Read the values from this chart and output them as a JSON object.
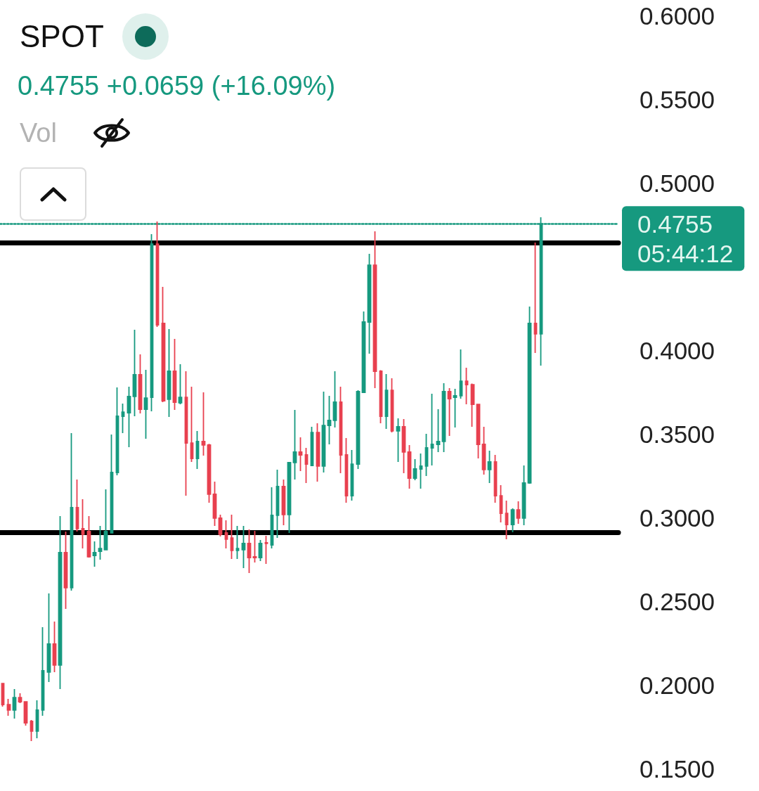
{
  "chart_data": {
    "type": "candlestick",
    "title": "SPOT",
    "subtitle": "0.4755 +0.0659 (+16.09%)",
    "annotations": [
      "Vol",
      "05:44:12"
    ],
    "categories": [
      null,
      null,
      null,
      null,
      null,
      null,
      null,
      null,
      null,
      null,
      null,
      null,
      null,
      null,
      null,
      null,
      null,
      null,
      null,
      null,
      null,
      null,
      null,
      null,
      null,
      null,
      null,
      null,
      null,
      null,
      null,
      null,
      null,
      null,
      null,
      null,
      null,
      null,
      null,
      null,
      null,
      null,
      null,
      null,
      null,
      null,
      null,
      null,
      null,
      null,
      null,
      null,
      null,
      null,
      null,
      null,
      null,
      null,
      null,
      null,
      null,
      null,
      null,
      null,
      null,
      null,
      null,
      null,
      null,
      null,
      null,
      null,
      null,
      null,
      null,
      null,
      null,
      null,
      null,
      null,
      null,
      null,
      null,
      null,
      null,
      null,
      null,
      null,
      null,
      null,
      null,
      null,
      null,
      null,
      null,
      null,
      null,
      null,
      null,
      null,
      null,
      null,
      null,
      null,
      null,
      null,
      null,
      null
    ],
    "ohlc": [
      [
        0.2008,
        0.201,
        0.187,
        0.1882
      ],
      [
        0.1882,
        0.1916,
        0.1815,
        0.1849
      ],
      [
        0.1849,
        0.1975,
        0.1798,
        0.1924
      ],
      [
        0.1924,
        0.195,
        0.1891,
        0.1899
      ],
      [
        0.1899,
        0.19,
        0.1756,
        0.1773
      ],
      [
        0.1782,
        0.179,
        0.1664,
        0.1723
      ],
      [
        0.1723,
        0.1908,
        0.1681,
        0.1849
      ],
      [
        0.1849,
        0.2345,
        0.1815,
        0.2084
      ],
      [
        0.2076,
        0.2546,
        0.2017,
        0.2244
      ],
      [
        0.2244,
        0.2378,
        0.2076,
        0.2118
      ],
      [
        0.2118,
        0.3008,
        0.1975,
        0.279
      ],
      [
        0.279,
        0.2916,
        0.2454,
        0.258
      ],
      [
        0.258,
        0.3504,
        0.2563,
        0.3059
      ],
      [
        0.3059,
        0.3227,
        0.2916,
        0.2933
      ],
      [
        0.2933,
        0.3109,
        0.2815,
        0.29
      ],
      [
        0.2916,
        0.3008,
        0.276,
        0.2765
      ],
      [
        0.2773,
        0.2857,
        0.2706,
        0.279
      ],
      [
        0.2798,
        0.295,
        0.2748,
        0.2815
      ],
      [
        0.2807,
        0.3168,
        0.2807,
        0.2916
      ],
      [
        0.2908,
        0.3496,
        0.2908,
        0.3269
      ],
      [
        0.3269,
        0.3777,
        0.3252,
        0.3605
      ],
      [
        0.3605,
        0.3681,
        0.3504,
        0.363
      ],
      [
        0.3626,
        0.3782,
        0.342,
        0.3723
      ],
      [
        0.3723,
        0.4122,
        0.3605,
        0.3853
      ],
      [
        0.3853,
        0.3975,
        0.3622,
        0.3647
      ],
      [
        0.3647,
        0.3882,
        0.3471,
        0.3714
      ],
      [
        0.3718,
        0.4693,
        0.3634,
        0.4634
      ],
      [
        0.4634,
        0.4769,
        0.4139,
        0.4151
      ],
      [
        0.416,
        0.4378,
        0.3689,
        0.3697
      ],
      [
        0.3706,
        0.4126,
        0.3601,
        0.3874
      ],
      [
        0.3874,
        0.4067,
        0.3643,
        0.3689
      ],
      [
        0.3685,
        0.3916,
        0.3676,
        0.3718
      ],
      [
        0.3718,
        0.3874,
        0.313,
        0.3445
      ],
      [
        0.3445,
        0.3782,
        0.3332,
        0.3353
      ],
      [
        0.3353,
        0.3517,
        0.329,
        0.3454
      ],
      [
        0.3454,
        0.3748,
        0.337,
        0.3433
      ],
      [
        0.3433,
        0.344,
        0.3088,
        0.3139
      ],
      [
        0.3139,
        0.3214,
        0.295,
        0.2996
      ],
      [
        0.2996,
        0.3017,
        0.2887,
        0.29
      ],
      [
        0.2908,
        0.2983,
        0.2815,
        0.287
      ],
      [
        0.2878,
        0.3017,
        0.2752,
        0.2803
      ],
      [
        0.2803,
        0.295,
        0.2752,
        0.2815
      ],
      [
        0.2807,
        0.295,
        0.2697,
        0.2845
      ],
      [
        0.2845,
        0.2929,
        0.2668,
        0.276
      ],
      [
        0.2765,
        0.292,
        0.2731,
        0.276
      ],
      [
        0.276,
        0.2866,
        0.2739,
        0.2845
      ],
      [
        0.2849,
        0.2891,
        0.2723,
        0.2845
      ],
      [
        0.2836,
        0.3181,
        0.2815,
        0.3013
      ],
      [
        0.3013,
        0.3286,
        0.2878,
        0.3185
      ],
      [
        0.3185,
        0.3227,
        0.2954,
        0.3017
      ],
      [
        0.3017,
        0.3332,
        0.2908,
        0.3328
      ],
      [
        0.3328,
        0.3643,
        0.3227,
        0.3391
      ],
      [
        0.3391,
        0.3479,
        0.3277,
        0.3374
      ],
      [
        0.3374,
        0.3416,
        0.3206,
        0.3319
      ],
      [
        0.3311,
        0.3542,
        0.3307,
        0.3508
      ],
      [
        0.3508,
        0.3563,
        0.3214,
        0.3307
      ],
      [
        0.3307,
        0.3752,
        0.3269,
        0.355
      ],
      [
        0.355,
        0.3727,
        0.3437,
        0.358
      ],
      [
        0.358,
        0.3874,
        0.3538,
        0.3689
      ],
      [
        0.3689,
        0.3782,
        0.3265,
        0.3374
      ],
      [
        0.3374,
        0.3475,
        0.3088,
        0.313
      ],
      [
        0.313,
        0.3403,
        0.3101,
        0.3319
      ],
      [
        0.3319,
        0.376,
        0.329,
        0.3752
      ],
      [
        0.3748,
        0.4231,
        0.3748,
        0.4168
      ],
      [
        0.4168,
        0.4576,
        0.3979,
        0.4508
      ],
      [
        0.4508,
        0.471,
        0.3773,
        0.3874
      ],
      [
        0.3874,
        0.388,
        0.3563,
        0.3605
      ],
      [
        0.3605,
        0.3857,
        0.3529,
        0.376
      ],
      [
        0.376,
        0.3832,
        0.3508,
        0.3517
      ],
      [
        0.3517,
        0.3592,
        0.3332,
        0.3542
      ],
      [
        0.3542,
        0.3588,
        0.3265,
        0.3391
      ],
      [
        0.3391,
        0.3433,
        0.3172,
        0.3235
      ],
      [
        0.3235,
        0.3349,
        0.3223,
        0.329
      ],
      [
        0.329,
        0.3382,
        0.3172,
        0.3307
      ],
      [
        0.3307,
        0.35,
        0.3248,
        0.3416
      ],
      [
        0.3416,
        0.374,
        0.3311,
        0.3437
      ],
      [
        0.3437,
        0.3647,
        0.3391,
        0.3454
      ],
      [
        0.3454,
        0.3803,
        0.3391,
        0.3752
      ],
      [
        0.3752,
        0.3773,
        0.3487,
        0.371
      ],
      [
        0.3718,
        0.3769,
        0.3538,
        0.3727
      ],
      [
        0.3727,
        0.4004,
        0.371,
        0.3815
      ],
      [
        0.3815,
        0.3895,
        0.3676,
        0.3794
      ],
      [
        0.3794,
        0.38,
        0.3542,
        0.3676
      ],
      [
        0.3676,
        0.368,
        0.3353,
        0.3437
      ],
      [
        0.3437,
        0.3542,
        0.3256,
        0.3286
      ],
      [
        0.3286,
        0.3399,
        0.3206,
        0.3332
      ],
      [
        0.3332,
        0.3374,
        0.3088,
        0.313
      ],
      [
        0.313,
        0.3193,
        0.2971,
        0.3025
      ],
      [
        0.3025,
        0.3101,
        0.287,
        0.2958
      ],
      [
        0.2958,
        0.3055,
        0.2912,
        0.3046
      ],
      [
        0.3046,
        0.3097,
        0.2962,
        0.2996
      ],
      [
        0.2996,
        0.3311,
        0.2954,
        0.3206
      ],
      [
        0.3206,
        0.4261,
        0.3202,
        0.416
      ],
      [
        0.416,
        0.4643,
        0.3983,
        0.4097
      ],
      [
        0.4097,
        0.4794,
        0.3908,
        0.4755
      ],
      null,
      null,
      null,
      null,
      null,
      null,
      null,
      null,
      null,
      null,
      null,
      null,
      null
    ],
    "colors": [
      "#e8404f",
      "#e8404f",
      "#16997f",
      "#e8404f",
      "#e8404f",
      "#e8404f",
      "#16997f",
      "#16997f",
      "#16997f",
      "#e8404f",
      "#16997f",
      "#e8404f",
      "#16997f",
      "#e8404f",
      "#e8404f",
      "#e8404f",
      "#16997f",
      "#16997f",
      "#16997f",
      "#16997f",
      "#16997f",
      "#16997f",
      "#16997f",
      "#16997f",
      "#e8404f",
      "#16997f",
      "#16997f",
      "#e8404f",
      "#e8404f",
      "#16997f",
      "#e8404f",
      "#16997f",
      "#e8404f",
      "#e8404f",
      "#16997f",
      "#e8404f",
      "#e8404f",
      "#e8404f",
      "#e8404f",
      "#e8404f",
      "#e8404f",
      "#16997f",
      "#16997f",
      "#e8404f",
      "#e8404f",
      "#16997f",
      "#e8404f",
      "#16997f",
      "#16997f",
      "#e8404f",
      "#16997f",
      "#16997f",
      "#e8404f",
      "#e8404f",
      "#16997f",
      "#e8404f",
      "#16997f",
      "#16997f",
      "#16997f",
      "#e8404f",
      "#e8404f",
      "#16997f",
      "#16997f",
      "#16997f",
      "#16997f",
      "#e8404f",
      "#e8404f",
      "#16997f",
      "#e8404f",
      "#16997f",
      "#e8404f",
      "#e8404f",
      "#16997f",
      "#16997f",
      "#16997f",
      "#16997f",
      "#16997f",
      "#16997f",
      "#e8404f",
      "#16997f",
      "#16997f",
      "#e8404f",
      "#e8404f",
      "#e8404f",
      "#e8404f",
      "#16997f",
      "#e8404f",
      "#e8404f",
      "#e8404f",
      "#16997f",
      "#e8404f",
      "#16997f",
      "#16997f",
      "#e8404f",
      "#16997f",
      null,
      null,
      null,
      null,
      null,
      null,
      null,
      null,
      null,
      null,
      null,
      null,
      null
    ],
    "ylim": [
      0.15,
      0.6
    ],
    "yticks": [
      {
        "value": 0.15,
        "label": "0.1500"
      },
      {
        "value": 0.2,
        "label": "0.2000"
      },
      {
        "value": 0.25,
        "label": "0.2500"
      },
      {
        "value": 0.3,
        "label": "0.3000"
      },
      {
        "value": 0.35,
        "label": "0.3500"
      },
      {
        "value": 0.4,
        "label": "0.4000"
      },
      {
        "value": 0.5,
        "label": "0.5000"
      },
      {
        "value": 0.55,
        "label": "0.5500"
      },
      {
        "value": 0.6,
        "label": "0.6000"
      }
    ],
    "tick_labels": "y",
    "grid": false,
    "ref_lines": [
      {
        "axis": "y",
        "value": 0.4643,
        "color": "#000000",
        "line_style": "solid"
      },
      {
        "axis": "y",
        "value": 0.2912,
        "color": "#000000",
        "line_style": "solid"
      },
      {
        "axis": "y",
        "value": 0.4755,
        "label": "0.4755",
        "color": "#16997f",
        "line_style": "dotted"
      }
    ]
  }
}
